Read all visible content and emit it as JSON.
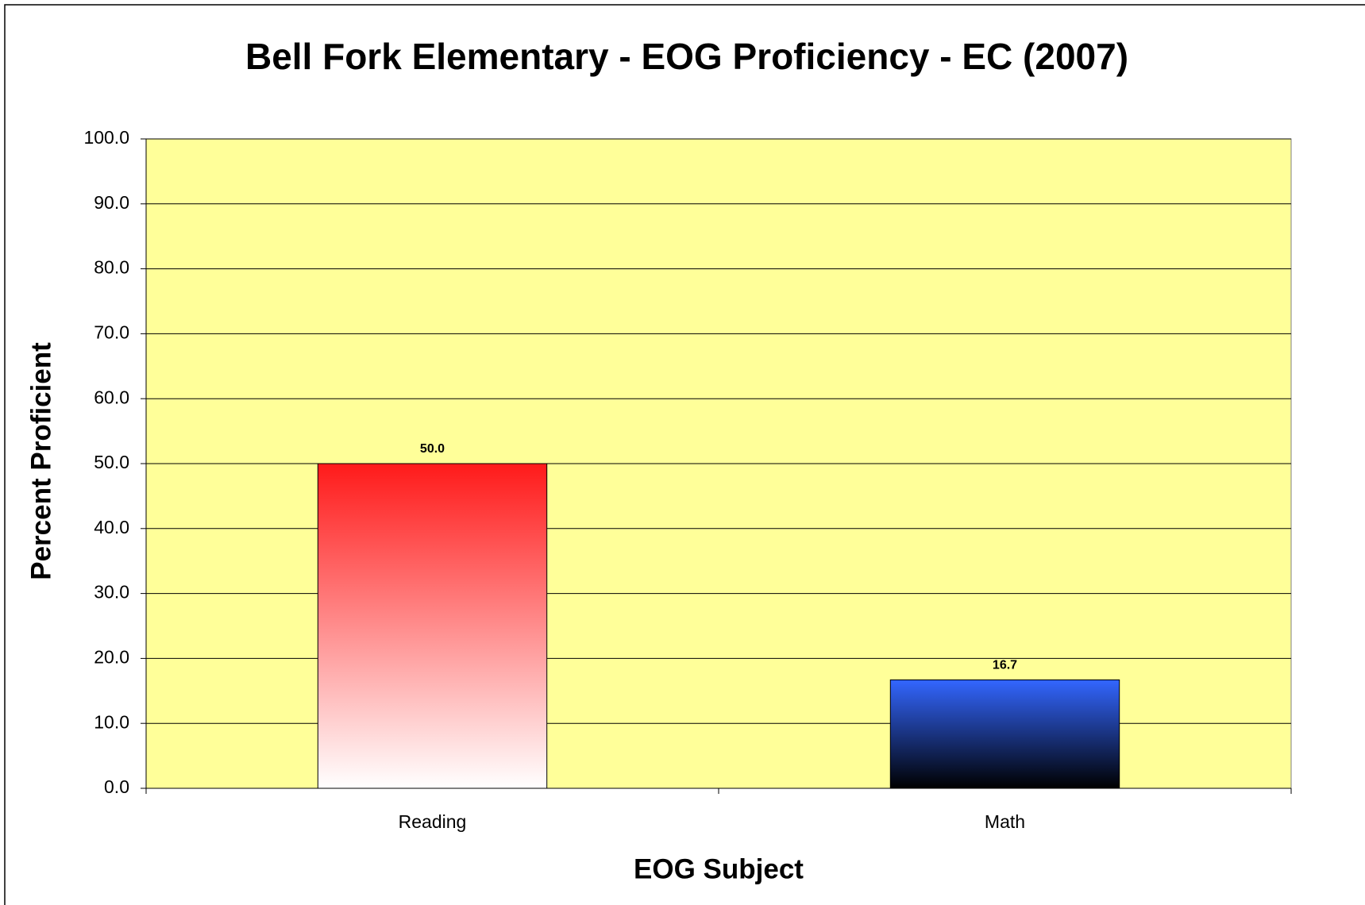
{
  "chart_data": {
    "type": "bar",
    "title": "Bell Fork Elementary - EOG Proficiency - EC (2007)",
    "x_label": "EOG Subject",
    "y_label": "Percent Proficient",
    "categories": [
      "Reading",
      "Math"
    ],
    "values": [
      50.0,
      16.7
    ],
    "value_labels": [
      "50.0",
      "16.7"
    ],
    "colors": [
      "#ff1a1a",
      "#3366ff"
    ],
    "gradient_end_colors": [
      "#ffffff",
      "#000000"
    ],
    "background": "#ffff99",
    "ylim": [
      0,
      100
    ],
    "yticks": [
      {
        "value": 0,
        "label": "0.0"
      },
      {
        "value": 10,
        "label": "10.0"
      },
      {
        "value": 20,
        "label": "20.0"
      },
      {
        "value": 30,
        "label": "30.0"
      },
      {
        "value": 40,
        "label": "40.0"
      },
      {
        "value": 50,
        "label": "50.0"
      },
      {
        "value": 60,
        "label": "60.0"
      },
      {
        "value": 70,
        "label": "70.0"
      },
      {
        "value": 80,
        "label": "80.0"
      },
      {
        "value": 90,
        "label": "90.0"
      },
      {
        "value": 100,
        "label": "100.0"
      }
    ],
    "grid": true
  }
}
